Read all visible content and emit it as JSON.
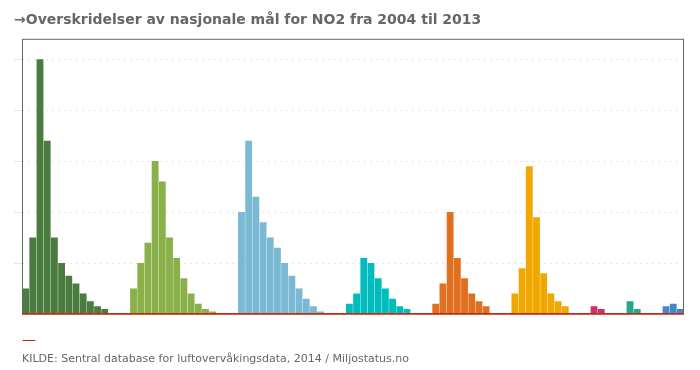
{
  "chart_data": {
    "type": "bar",
    "title": "→Overskridelser av nasjonale mål for NO2 fra 2004 til 2013",
    "series": [
      {
        "color": "#4a7c3f",
        "values": [
          10,
          30,
          100,
          68,
          30,
          20,
          15,
          12,
          8,
          5,
          3,
          2
        ]
      },
      {
        "color": "#8ab04a",
        "values": [
          10,
          20,
          28,
          60,
          52,
          30,
          22,
          14,
          8,
          4,
          2,
          1
        ]
      },
      {
        "color": "#7ab8d4",
        "values": [
          40,
          68,
          46,
          36,
          30,
          26,
          20,
          15,
          10,
          6,
          3,
          1
        ]
      },
      {
        "color": "#00bcbc",
        "values": [
          4,
          8,
          22,
          20,
          14,
          10,
          6,
          3,
          2
        ]
      },
      {
        "color": "#e07020",
        "values": [
          4,
          12,
          40,
          22,
          14,
          8,
          5,
          3
        ]
      },
      {
        "color": "#f0a800",
        "values": [
          8,
          18,
          58,
          38,
          16,
          8,
          5,
          3
        ]
      },
      {
        "color": "#cc3366",
        "values": [
          3,
          2
        ]
      },
      {
        "color": "#20a890",
        "values": [
          5,
          2
        ]
      },
      {
        "color": "#4488cc",
        "values": [
          3,
          4,
          2
        ]
      }
    ],
    "ylim": [
      0,
      108
    ],
    "yticks": [
      20,
      40,
      60,
      80,
      100
    ],
    "grid": true,
    "tick_labels": false,
    "legend": false,
    "annotations": [
      {
        "text": "—",
        "color": "#cc2200"
      },
      {
        "text": "KILDE: Sentral database for luftovervåkingsdata, 2014 / Miljostatus.no"
      }
    ]
  }
}
